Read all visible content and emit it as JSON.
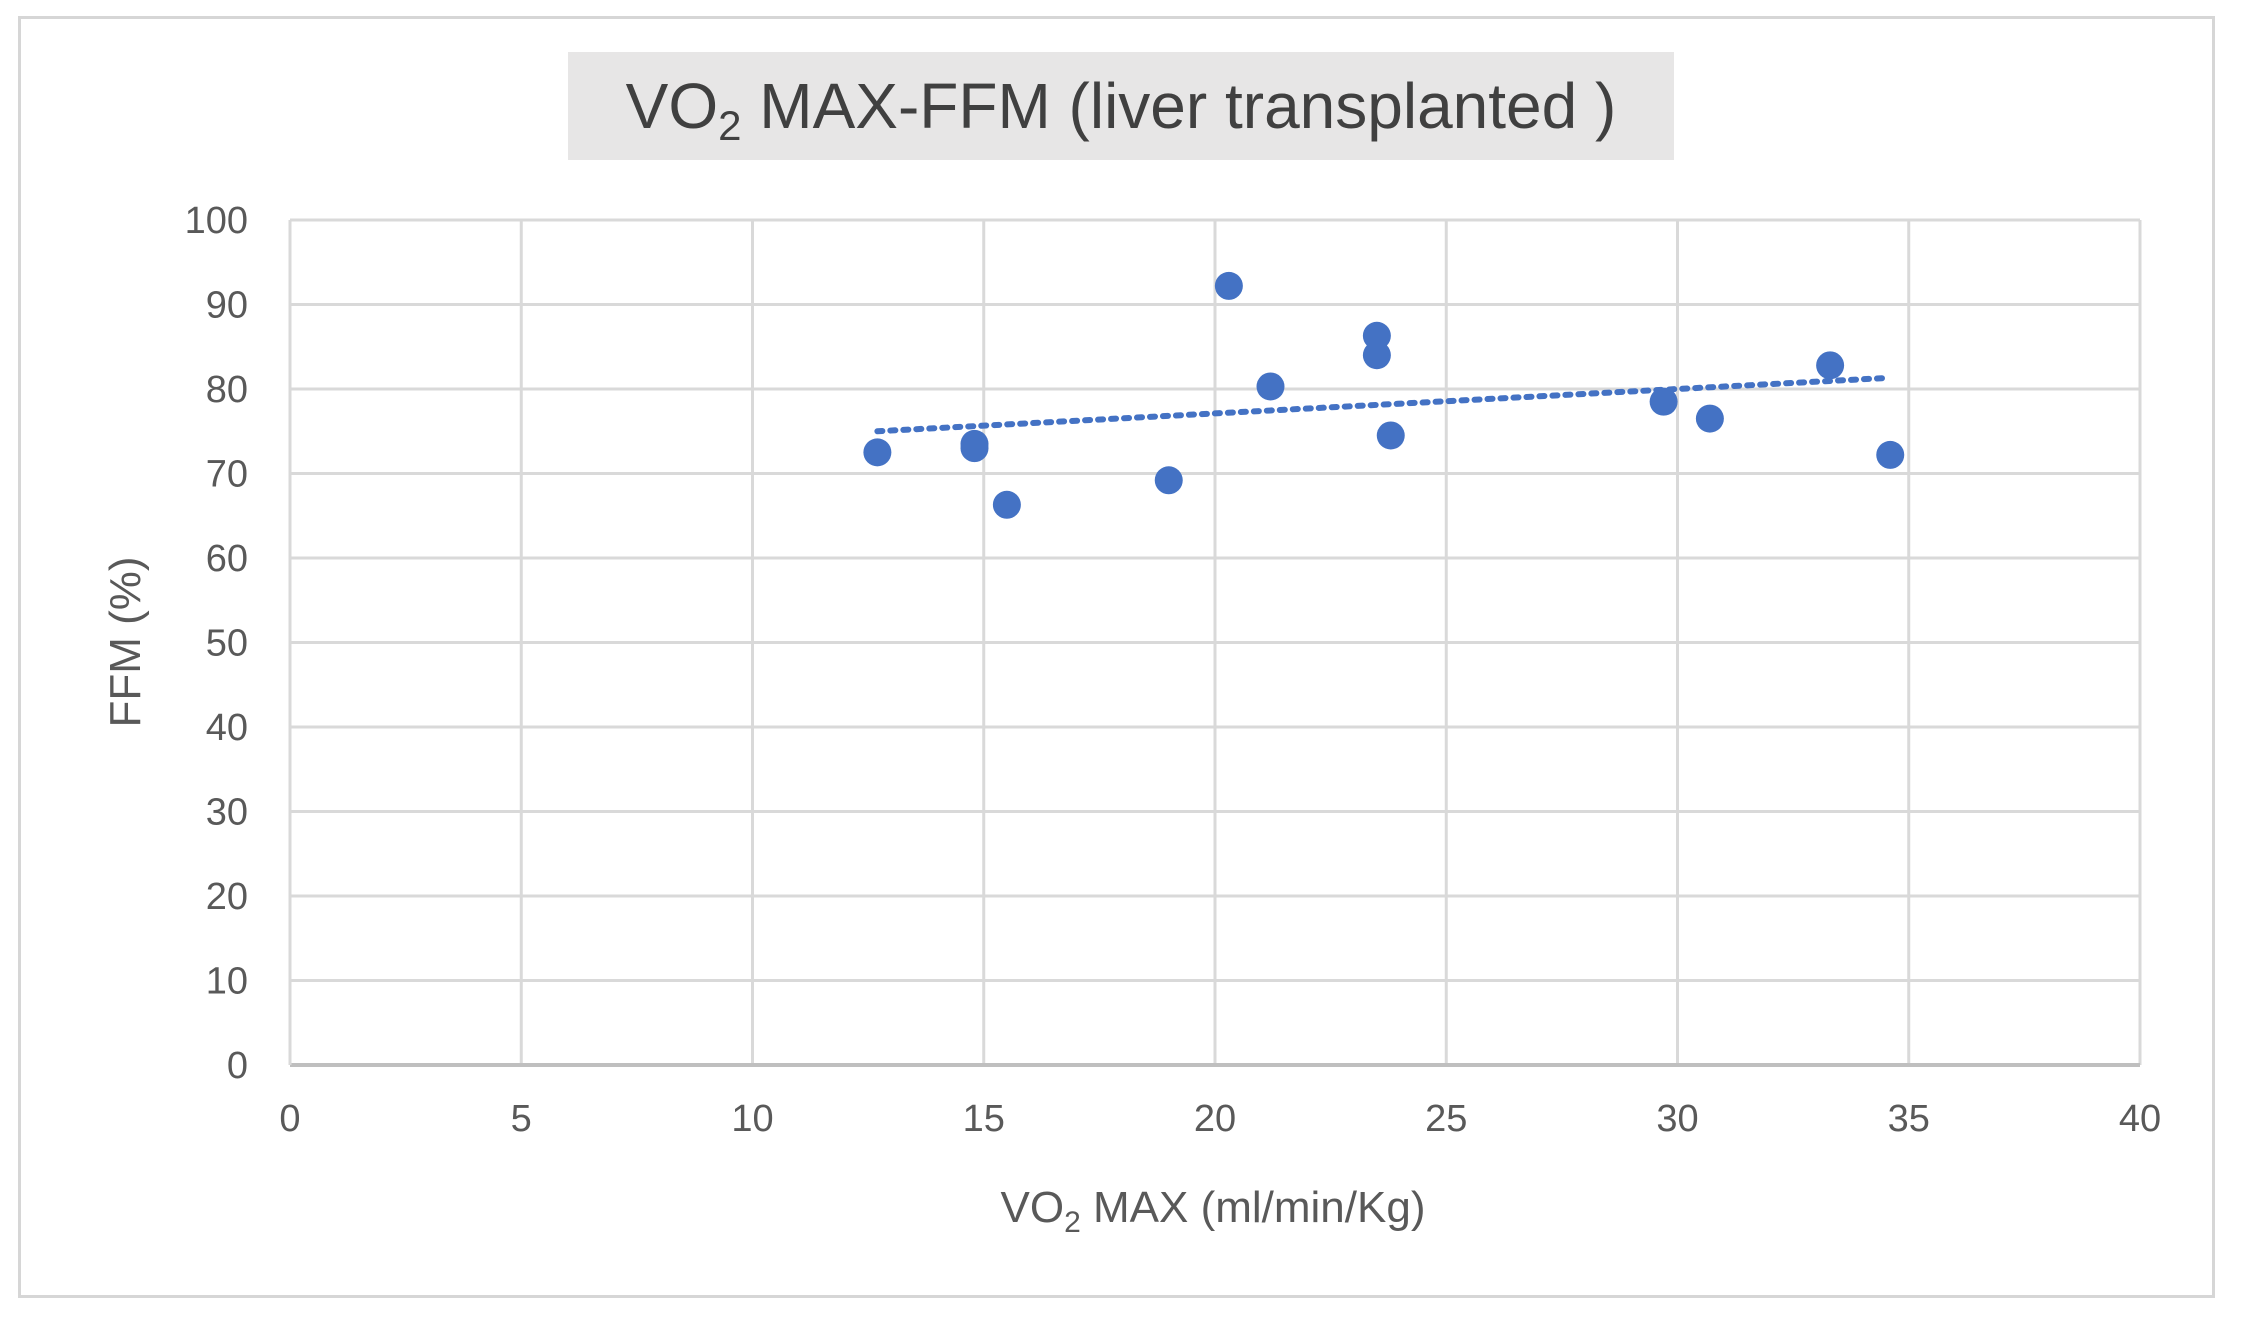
{
  "chart_data": {
    "type": "scatter",
    "title": {
      "main": "VO",
      "subscript": "2",
      "rest": " MAX-FFM (liver transplanted )"
    },
    "xlabel": {
      "main": "VO",
      "subscript": "2",
      "rest": " MAX (ml/min/Kg)"
    },
    "ylabel": "FFM (%)",
    "xlim": [
      0,
      40
    ],
    "ylim": [
      0,
      100
    ],
    "xticks": [
      "0",
      "5",
      "10",
      "15",
      "20",
      "25",
      "30",
      "35",
      "40"
    ],
    "yticks": [
      "0",
      "10",
      "20",
      "30",
      "40",
      "50",
      "60",
      "70",
      "80",
      "90",
      "100"
    ],
    "grid": true,
    "series": [
      {
        "name": "FFM",
        "points": [
          {
            "x": 12.7,
            "y": 72.5
          },
          {
            "x": 14.8,
            "y": 73.5
          },
          {
            "x": 14.8,
            "y": 73.0
          },
          {
            "x": 15.5,
            "y": 66.3
          },
          {
            "x": 19.0,
            "y": 69.2
          },
          {
            "x": 20.3,
            "y": 92.2
          },
          {
            "x": 21.2,
            "y": 80.3
          },
          {
            "x": 23.5,
            "y": 86.3
          },
          {
            "x": 23.5,
            "y": 84.0
          },
          {
            "x": 23.8,
            "y": 74.5
          },
          {
            "x": 29.7,
            "y": 78.5
          },
          {
            "x": 30.7,
            "y": 76.5
          },
          {
            "x": 33.3,
            "y": 82.8
          },
          {
            "x": 34.6,
            "y": 72.2
          }
        ]
      }
    ],
    "trendline": {
      "type": "linear",
      "x": [
        12.7,
        34.5
      ],
      "y": [
        75.0,
        81.3
      ]
    },
    "colors": {
      "marker": "#4472c4",
      "trendline": "#4472c4",
      "grid": "#d9d9d9",
      "title_background": "#e7e6e6",
      "text": "#595959"
    }
  }
}
